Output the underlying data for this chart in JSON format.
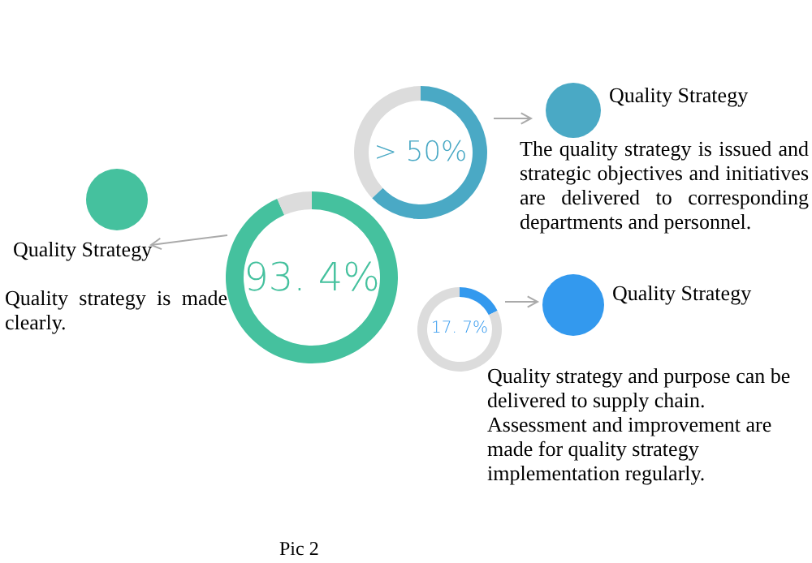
{
  "chart_data": [
    {
      "type": "donut",
      "categories": [
        null,
        null
      ],
      "values": [
        93.4,
        6.6
      ],
      "colors": [
        "#45c19e",
        "#dcdcdc"
      ],
      "annotations": [
        "93. 4%",
        "Quality Strategy",
        "Quality strategy is made clearly.",
        "Pic 2"
      ]
    },
    {
      "type": "donut",
      "categories": [
        null,
        null
      ],
      "values": [
        63,
        37
      ],
      "colors": [
        "#4aa9c5",
        "#dcdcdc"
      ],
      "annotations": [
        "> 50%",
        "Quality Strategy",
        "The quality strategy is issued and strategic objectives and initiatives are delivered to corresponding departments and personnel."
      ]
    },
    {
      "type": "donut",
      "categories": [
        null,
        null
      ],
      "values": [
        17.7,
        82.3
      ],
      "colors": [
        "#3399ee",
        "#dcdcdc"
      ],
      "annotations": [
        "17. 7%",
        "Quality Strategy",
        "Quality strategy and purpose can be delivered to supply chain. Assessment and improvement are made for quality strategy implementation regularly."
      ]
    }
  ]
}
